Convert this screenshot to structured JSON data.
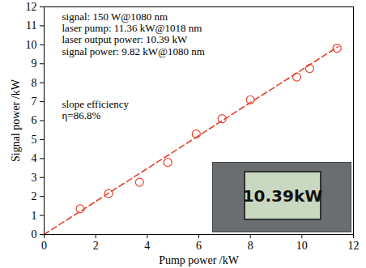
{
  "chart_data": {
    "type": "scatter",
    "x_label": "Pump power /kW",
    "y_label": "Signal power /kW",
    "xlim": [
      0,
      12
    ],
    "xticks": [
      0,
      2,
      4,
      6,
      8,
      10,
      12
    ],
    "ylim": [
      0,
      12
    ],
    "yticks": [
      0,
      1,
      2,
      3,
      4,
      5,
      6,
      7,
      8,
      9,
      10,
      11,
      12
    ],
    "annotations": [
      [
        "signal: 150 W@1080 nm",
        "laser pump: 11.36 kW@1018 nm",
        "laser output power: 10.39 kW",
        "signal power: 9.82 kW@1080 nm"
      ],
      [
        "slope efficiency",
        "η=86.8%"
      ]
    ],
    "inset_text": "10.39kW",
    "series": [
      {
        "type": "scatter",
        "marker": "circle",
        "color": "#e8412c",
        "x": [
          1.4,
          2.5,
          3.7,
          4.8,
          5.9,
          6.9,
          8.0,
          9.8,
          10.3,
          11.36
        ],
        "values": [
          1.35,
          2.15,
          2.75,
          3.8,
          5.3,
          6.1,
          7.1,
          8.3,
          8.75,
          9.82
        ]
      },
      {
        "type": "line",
        "line_style": "dashed",
        "color": "#e8412c",
        "x": [
          0,
          11.4
        ],
        "values": [
          0,
          9.9
        ]
      }
    ]
  }
}
